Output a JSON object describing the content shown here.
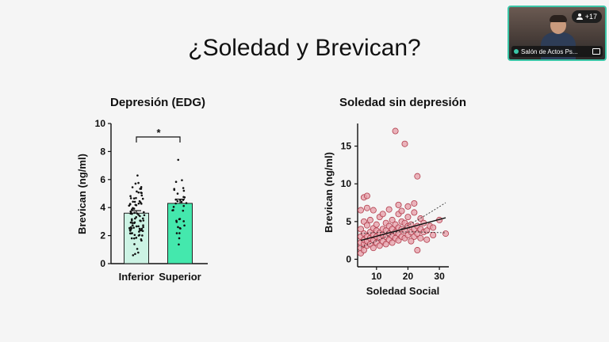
{
  "slide": {
    "title": "¿Soledad y Brevican?"
  },
  "meeting": {
    "participants_badge": "+17",
    "speaker_label": "Salón de Actos Ps..."
  },
  "colors": {
    "inferior_bar": "#ccf3e4",
    "superior_bar": "#44e8ad",
    "scatter_fill": "#e7a3ad",
    "scatter_stroke": "#b13b4a",
    "accent": "#3cc6a8"
  },
  "chart_data": [
    {
      "type": "bar",
      "title": "Depresión (EDG)",
      "ylabel": "Brevican (ng/ml)",
      "xlabel": "",
      "categories": [
        "Inferior",
        "Superior"
      ],
      "values": [
        3.6,
        4.3
      ],
      "errors": [
        0.18,
        0.3
      ],
      "ylim": [
        0,
        10
      ],
      "yticks": [
        "0",
        "2",
        "4",
        "6",
        "8",
        "10"
      ],
      "significance": "*"
    },
    {
      "type": "scatter",
      "title": "Soledad sin depresión",
      "xlabel": "Soledad Social",
      "ylabel": "Brevican (ng/ml)",
      "xlim": [
        4,
        33
      ],
      "ylim": [
        -1,
        18
      ],
      "xticks": [
        "10",
        "20",
        "30"
      ],
      "yticks": [
        "0",
        "5",
        "10",
        "15"
      ],
      "trend": {
        "start": [
          5,
          2.5
        ],
        "end": [
          32,
          5.5
        ]
      },
      "points": [
        [
          5,
          0.8
        ],
        [
          5,
          1.5
        ],
        [
          5,
          2.2
        ],
        [
          5,
          3.0
        ],
        [
          5,
          4.0
        ],
        [
          5,
          6.5
        ],
        [
          6,
          1.2
        ],
        [
          6,
          2.0
        ],
        [
          6,
          2.6
        ],
        [
          6,
          3.4
        ],
        [
          6,
          5.0
        ],
        [
          6,
          8.2
        ],
        [
          7,
          1.8
        ],
        [
          7,
          2.4
        ],
        [
          7,
          3.0
        ],
        [
          7,
          4.5
        ],
        [
          7,
          6.8
        ],
        [
          7,
          8.4
        ],
        [
          8,
          2.0
        ],
        [
          8,
          2.8
        ],
        [
          8,
          3.6
        ],
        [
          8,
          5.2
        ],
        [
          9,
          1.5
        ],
        [
          9,
          2.5
        ],
        [
          9,
          3.2
        ],
        [
          9,
          4.1
        ],
        [
          9,
          6.5
        ],
        [
          10,
          2.2
        ],
        [
          10,
          3.0
        ],
        [
          10,
          3.8
        ],
        [
          10,
          4.6
        ],
        [
          11,
          1.8
        ],
        [
          11,
          2.8
        ],
        [
          11,
          3.5
        ],
        [
          11,
          5.6
        ],
        [
          12,
          2.4
        ],
        [
          12,
          3.2
        ],
        [
          12,
          4.0
        ],
        [
          12,
          6.0
        ],
        [
          13,
          2.0
        ],
        [
          13,
          3.0
        ],
        [
          13,
          3.8
        ],
        [
          13,
          4.8
        ],
        [
          14,
          2.6
        ],
        [
          14,
          3.4
        ],
        [
          14,
          4.4
        ],
        [
          14,
          6.6
        ],
        [
          15,
          2.2
        ],
        [
          15,
          3.1
        ],
        [
          15,
          4.0
        ],
        [
          15,
          5.2
        ],
        [
          16,
          2.8
        ],
        [
          16,
          3.6
        ],
        [
          16,
          4.6
        ],
        [
          16,
          17.0
        ],
        [
          17,
          2.5
        ],
        [
          17,
          3.4
        ],
        [
          17,
          4.2
        ],
        [
          17,
          6.0
        ],
        [
          17,
          7.2
        ],
        [
          18,
          3.0
        ],
        [
          18,
          4.0
        ],
        [
          18,
          5.0
        ],
        [
          18,
          6.4
        ],
        [
          19,
          2.8
        ],
        [
          19,
          3.8
        ],
        [
          19,
          4.8
        ],
        [
          19,
          15.3
        ],
        [
          20,
          3.2
        ],
        [
          20,
          4.4
        ],
        [
          20,
          5.6
        ],
        [
          20,
          7.0
        ],
        [
          21,
          2.4
        ],
        [
          21,
          3.6
        ],
        [
          21,
          4.6
        ],
        [
          22,
          3.0
        ],
        [
          22,
          4.0
        ],
        [
          22,
          6.2
        ],
        [
          22,
          7.4
        ],
        [
          23,
          3.4
        ],
        [
          23,
          4.4
        ],
        [
          23,
          11.0
        ],
        [
          23,
          1.2
        ],
        [
          24,
          2.8
        ],
        [
          24,
          4.0
        ],
        [
          24,
          5.4
        ],
        [
          25,
          3.6
        ],
        [
          25,
          4.8
        ],
        [
          26,
          2.6
        ],
        [
          26,
          3.8
        ],
        [
          27,
          4.4
        ],
        [
          28,
          3.2
        ],
        [
          28,
          4.2
        ],
        [
          30,
          5.2
        ],
        [
          32,
          3.4
        ]
      ]
    }
  ]
}
